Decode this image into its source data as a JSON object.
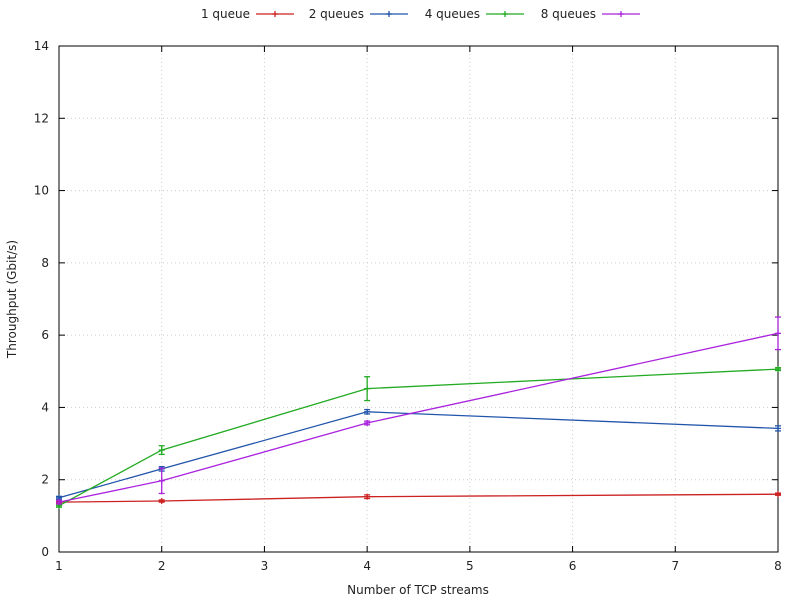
{
  "chart_data": {
    "type": "line",
    "title": "",
    "xlabel": "Number of TCP streams",
    "ylabel": "Throughput (Gbit/s)",
    "xlim": [
      1,
      8
    ],
    "ylim": [
      0,
      14
    ],
    "xticks": [
      1,
      2,
      3,
      4,
      5,
      6,
      7,
      8
    ],
    "yticks": [
      0,
      2,
      4,
      6,
      8,
      10,
      12,
      14
    ],
    "grid": true,
    "legend_position": "top",
    "error_bars": true,
    "series": [
      {
        "name": "1 queue",
        "color": "#cc2222",
        "x": [
          1,
          2,
          4,
          8
        ],
        "y": [
          1.38,
          1.41,
          1.53,
          1.6
        ],
        "yerr": [
          0.03,
          0.03,
          0.05,
          0.03
        ]
      },
      {
        "name": "2 queues",
        "color": "#2255aa",
        "x": [
          1,
          2,
          4,
          8
        ],
        "y": [
          1.5,
          2.3,
          3.88,
          3.42
        ],
        "yerr": [
          0.04,
          0.06,
          0.06,
          0.07
        ]
      },
      {
        "name": "4 queues",
        "color": "#22aa22",
        "x": [
          1,
          2,
          4,
          8
        ],
        "y": [
          1.28,
          2.82,
          4.52,
          5.06
        ],
        "yerr": [
          0.04,
          0.12,
          0.33,
          0.04
        ]
      },
      {
        "name": "8 queues",
        "color": "#aa22dd",
        "x": [
          1,
          2,
          4,
          8
        ],
        "y": [
          1.38,
          1.97,
          3.57,
          6.05
        ],
        "yerr": [
          0.05,
          0.35,
          0.05,
          0.45
        ]
      }
    ]
  }
}
